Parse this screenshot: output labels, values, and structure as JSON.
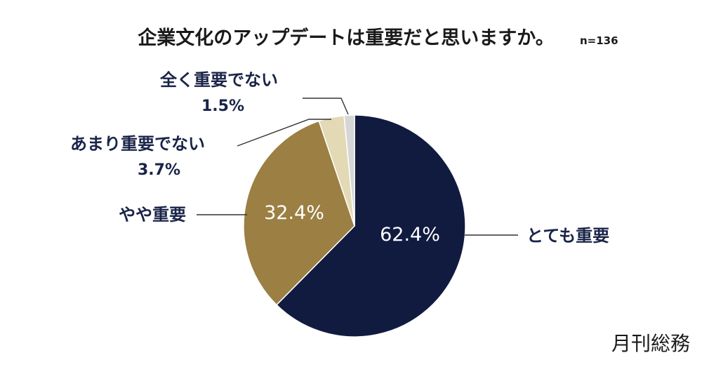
{
  "chart_data": {
    "type": "pie",
    "title": "企業文化のアップデートは重要だと思いますか。",
    "sample_size_label": "n=136",
    "slices": [
      {
        "label": "とても重要",
        "value": 62.4,
        "value_label": "62.4%",
        "color": "#111b40",
        "label_position": "inside"
      },
      {
        "label": "やや重要",
        "value": 32.4,
        "value_label": "32.4%",
        "color": "#9b7f43",
        "label_position": "inside"
      },
      {
        "label": "あまり重要でない",
        "value": 3.7,
        "value_label": "3.7%",
        "color": "#e3d9b5",
        "label_position": "outside"
      },
      {
        "label": "全く重要でない",
        "value": 1.5,
        "value_label": "1.5%",
        "color": "#d6d6d6",
        "label_position": "outside"
      }
    ],
    "start_angle": "12 o'clock",
    "direction": "clockwise",
    "legend": "none"
  },
  "source": "月刊総務"
}
